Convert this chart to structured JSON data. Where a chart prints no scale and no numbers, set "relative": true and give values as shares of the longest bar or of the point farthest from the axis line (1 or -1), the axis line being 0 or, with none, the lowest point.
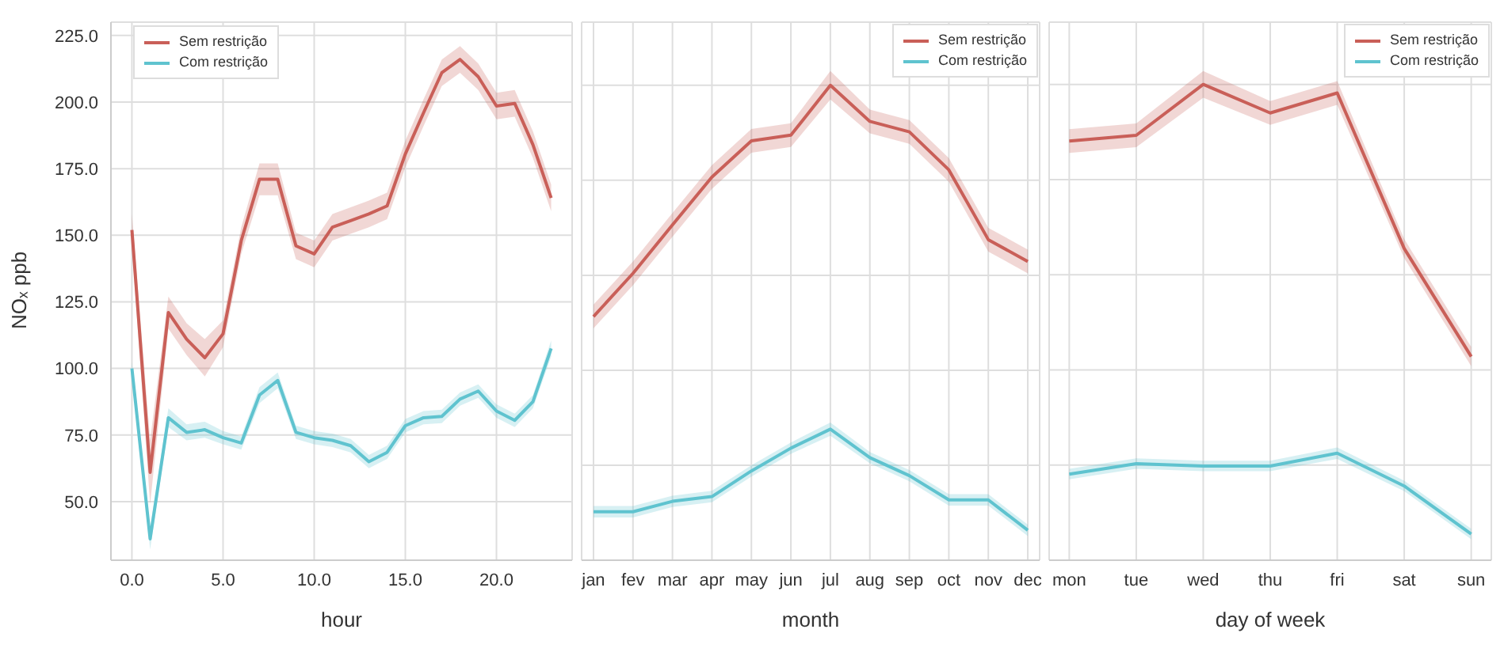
{
  "chart_data": [
    {
      "type": "line",
      "ylabel": "NOₓ ppb",
      "xlabel": "hour",
      "x": [
        0,
        1,
        2,
        3,
        4,
        5,
        6,
        7,
        8,
        9,
        10,
        11,
        12,
        13,
        14,
        15,
        16,
        17,
        18,
        19,
        20,
        21,
        22,
        23
      ],
      "xlim": [
        -1.15,
        24.15
      ],
      "xticks": [
        {
          "value": 0,
          "label": "0.0"
        },
        {
          "value": 5,
          "label": "5.0"
        },
        {
          "value": 10,
          "label": "10.0"
        },
        {
          "value": 15,
          "label": "15.0"
        },
        {
          "value": 20,
          "label": "20.0"
        }
      ],
      "ylim": [
        28,
        230
      ],
      "yticks": [
        {
          "value": 50,
          "label": "50.0"
        },
        {
          "value": 75,
          "label": "75.0"
        },
        {
          "value": 100,
          "label": "100.0"
        },
        {
          "value": 125,
          "label": "125.0"
        },
        {
          "value": 150,
          "label": "150.0"
        },
        {
          "value": 175,
          "label": "175.0"
        },
        {
          "value": 200,
          "label": "200.0"
        },
        {
          "value": 225,
          "label": "225.0"
        }
      ],
      "grid": true,
      "legend": "top left",
      "marker": "none",
      "line_style": "solid",
      "series": [
        {
          "name": "Sem restrição",
          "color": "#c95f58",
          "values": [
            152,
            61,
            121,
            111,
            104,
            113,
            148,
            171,
            171,
            146,
            143,
            153,
            155.5,
            158,
            161,
            180.5,
            196,
            211,
            216,
            209.5,
            198.5,
            199.5,
            184,
            164
          ],
          "lower": [
            146,
            49,
            115,
            105,
            97,
            108,
            143,
            165,
            165,
            141,
            138,
            148,
            150.5,
            153,
            156,
            175.5,
            191,
            206,
            211,
            204.5,
            193.5,
            194.5,
            179,
            159
          ],
          "upper": [
            158,
            73,
            127,
            117,
            111,
            118,
            153,
            177,
            177,
            151,
            148,
            158,
            160.5,
            163,
            166,
            185.5,
            201,
            216,
            221,
            214.5,
            203.5,
            204.5,
            189,
            169
          ]
        },
        {
          "name": "Com restrição",
          "color": "#5fc3cf",
          "values": [
            100,
            36,
            81.5,
            76,
            77,
            74,
            72,
            90,
            95.5,
            76,
            74,
            73,
            71,
            65,
            68.5,
            78.5,
            81.5,
            82,
            88.5,
            91.5,
            84,
            80.5,
            87.5,
            107.5
          ],
          "lower": [
            97.5,
            32,
            78,
            73,
            74,
            71.5,
            69.5,
            87,
            92.5,
            73.5,
            71.5,
            70.5,
            68.5,
            62.5,
            66,
            76,
            79,
            79.5,
            86,
            89,
            81.5,
            78,
            85,
            104.5
          ],
          "upper": [
            102.5,
            40,
            85,
            79,
            80,
            76.5,
            74.5,
            93,
            98.5,
            78.5,
            76.5,
            75.5,
            73.5,
            67.5,
            71,
            81,
            84,
            84.5,
            91,
            94,
            86.5,
            83,
            90,
            110.5
          ]
        }
      ]
    },
    {
      "type": "line",
      "xlabel": "month",
      "categories": [
        "jan",
        "fev",
        "mar",
        "apr",
        "may",
        "jun",
        "jul",
        "aug",
        "sep",
        "oct",
        "nov",
        "dec"
      ],
      "relative": true,
      "tick_labels": "x",
      "grid": true,
      "legend": "top right",
      "marker": "none",
      "line_style": "solid",
      "series": [
        {
          "name": "Sem restrição",
          "color": "#c95f58",
          "values": [
            0.513,
            0.604,
            0.706,
            0.807,
            0.883,
            0.895,
            1,
            0.924,
            0.902,
            0.822,
            0.675,
            0.629
          ],
          "lower": [
            0.488,
            0.579,
            0.681,
            0.782,
            0.858,
            0.87,
            0.97,
            0.899,
            0.877,
            0.797,
            0.65,
            0.604
          ],
          "upper": [
            0.538,
            0.629,
            0.731,
            0.832,
            0.908,
            0.92,
            1.03,
            0.949,
            0.927,
            0.847,
            0.7,
            0.654
          ]
        },
        {
          "name": "Com restrição",
          "color": "#5fc3cf",
          "values": [
            0.102,
            0.102,
            0.124,
            0.134,
            0.188,
            0.236,
            0.276,
            0.216,
            0.178,
            0.127,
            0.127,
            0.063
          ],
          "lower": [
            0.09,
            0.09,
            0.112,
            0.122,
            0.176,
            0.224,
            0.262,
            0.204,
            0.166,
            0.115,
            0.115,
            0.051
          ],
          "upper": [
            0.114,
            0.114,
            0.136,
            0.146,
            0.2,
            0.248,
            0.29,
            0.228,
            0.19,
            0.139,
            0.139,
            0.075
          ]
        }
      ]
    },
    {
      "type": "line",
      "xlabel": "day of week",
      "categories": [
        "mon",
        "tue",
        "wed",
        "thu",
        "fri",
        "sat",
        "sun"
      ],
      "relative": true,
      "tick_labels": "x",
      "grid": true,
      "legend": "top right",
      "marker": "none",
      "line_style": "solid",
      "series": [
        {
          "name": "Sem restrição",
          "color": "#c95f58",
          "values": [
            0.881,
            0.893,
            1,
            0.94,
            0.982,
            0.655,
            0.428
          ],
          "lower": [
            0.856,
            0.868,
            0.972,
            0.915,
            0.957,
            0.635,
            0.408
          ],
          "upper": [
            0.906,
            0.918,
            1.028,
            0.965,
            1.007,
            0.675,
            0.448
          ]
        },
        {
          "name": "Com restrição",
          "color": "#5fc3cf",
          "values": [
            0.181,
            0.203,
            0.198,
            0.198,
            0.225,
            0.156,
            0.055
          ],
          "lower": [
            0.17,
            0.192,
            0.187,
            0.187,
            0.213,
            0.145,
            0.044
          ],
          "upper": [
            0.192,
            0.214,
            0.209,
            0.209,
            0.237,
            0.167,
            0.066
          ]
        }
      ]
    }
  ]
}
